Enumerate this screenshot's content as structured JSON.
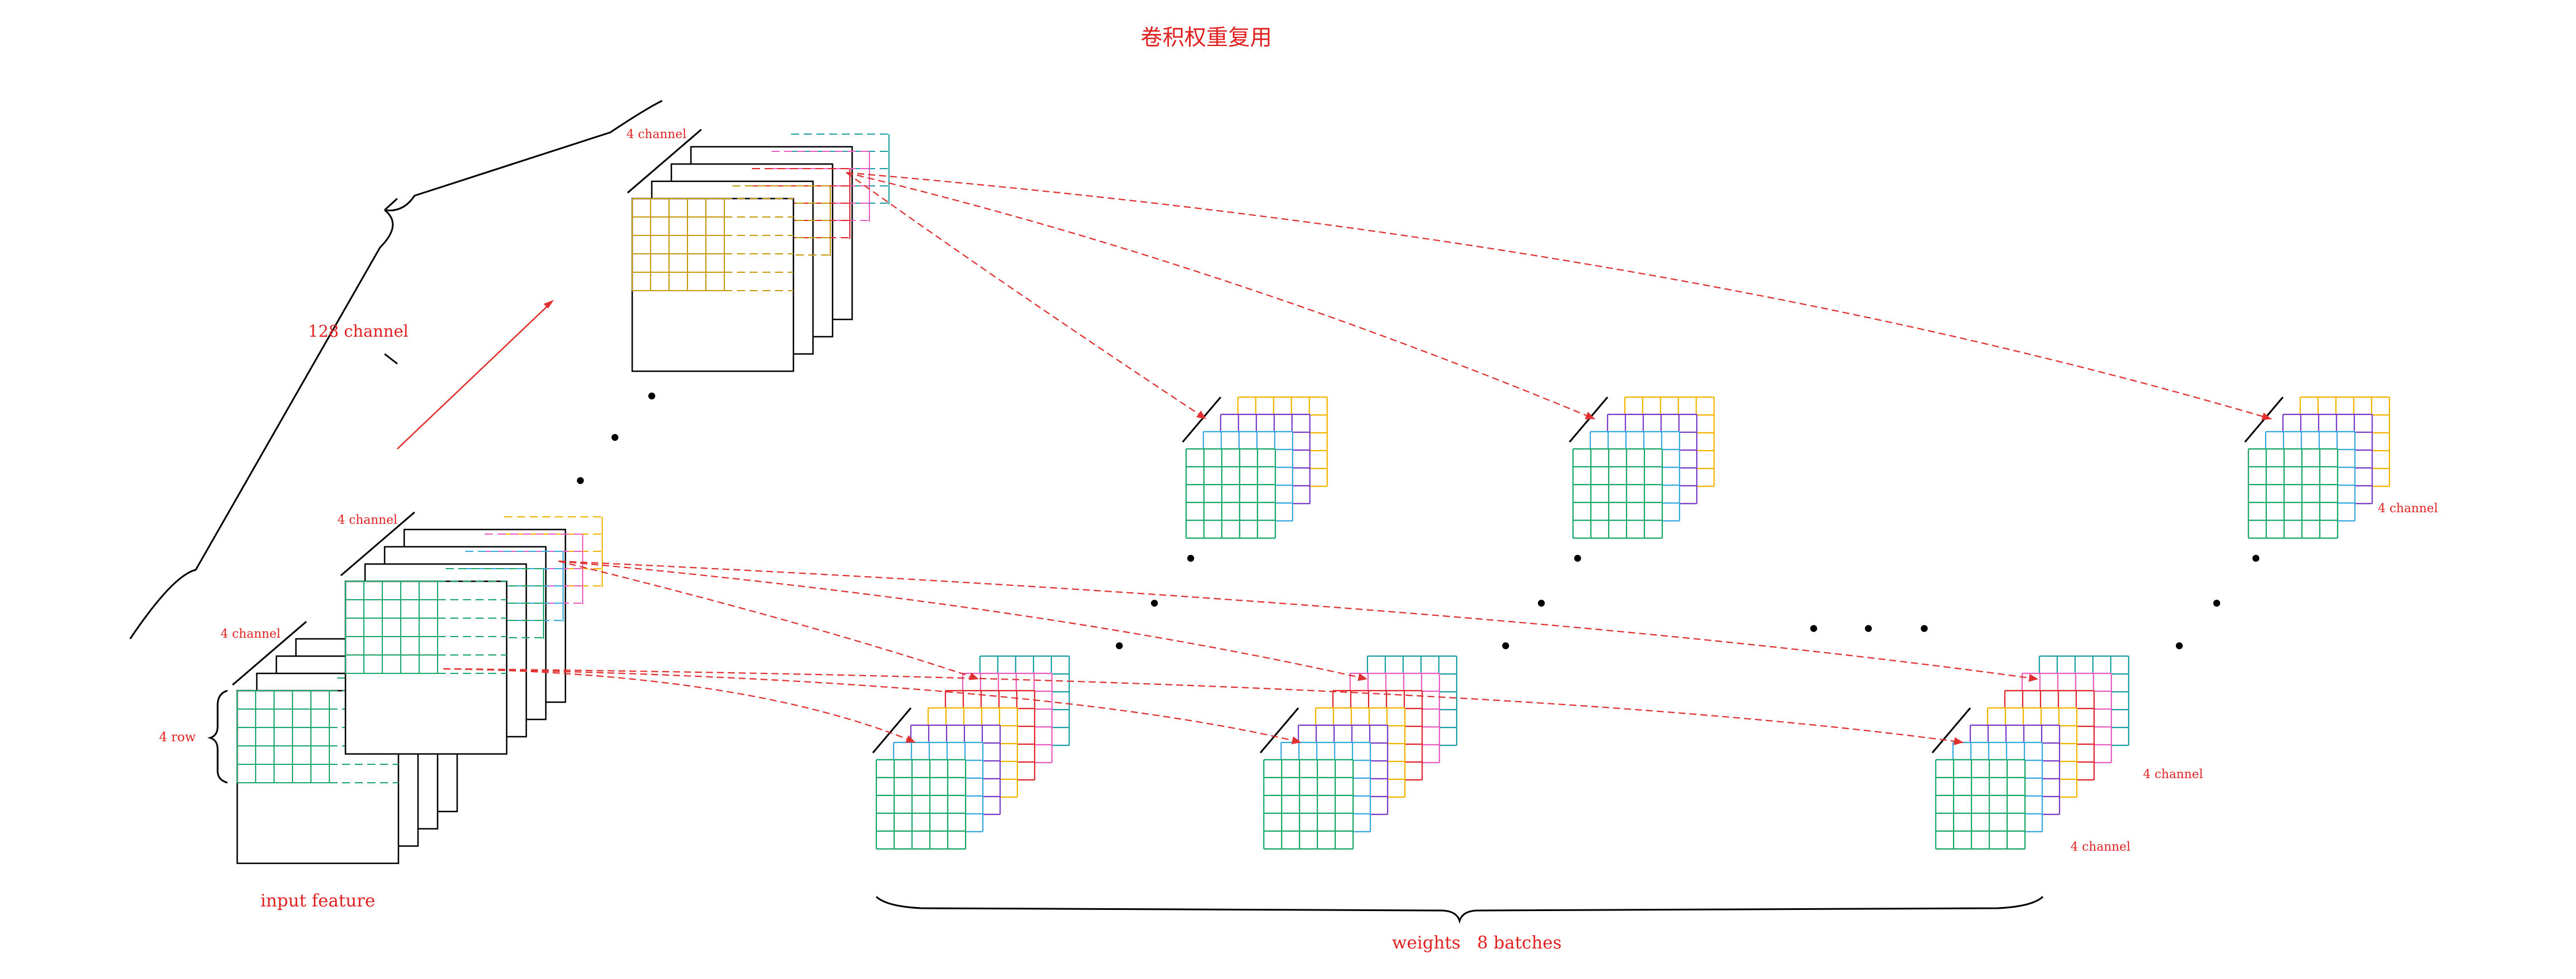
{
  "title": "卷积权重复用",
  "labels": {
    "input_feature": "input feature",
    "channel_128": "128 channel",
    "channel_4": "4 channel",
    "row_4": "4 row",
    "weights": "weights   8 batches"
  },
  "colors": {
    "label": "#e21f1f",
    "arrow": "#e03030",
    "outline": "#000000",
    "green": "#1aa96b",
    "blue": "#3aa9e0",
    "purple": "#7b3fc7",
    "yellow": "#f2b600",
    "gold": "#c79a10",
    "red": "#e3262e",
    "pink": "#ea5fbf",
    "teal": "#1f9fa3"
  },
  "structure": {
    "weight_tensor_grid": "4 channel x 5 row x 5 col",
    "input_groups_visible": 3,
    "weight_batches": 8
  }
}
